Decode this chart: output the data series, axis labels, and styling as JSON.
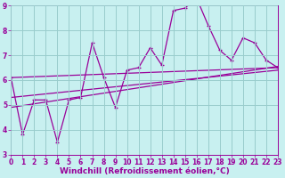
{
  "xlabel": "Windchill (Refroidissement éolien,°C)",
  "background_color": "#c8f0f0",
  "line_color": "#990099",
  "x_data": [
    0,
    1,
    2,
    3,
    4,
    5,
    6,
    7,
    8,
    9,
    10,
    11,
    12,
    13,
    14,
    15,
    16,
    17,
    18,
    19,
    20,
    21,
    22,
    23
  ],
  "series1": [
    6.1,
    3.8,
    5.2,
    5.2,
    3.5,
    5.2,
    5.3,
    7.5,
    6.1,
    4.9,
    6.4,
    6.5,
    7.3,
    6.6,
    8.8,
    8.9,
    9.3,
    8.2,
    7.2,
    6.8,
    7.7,
    7.5,
    6.8,
    6.5
  ],
  "trend1_x": [
    0,
    23
  ],
  "trend1_y": [
    6.1,
    6.5
  ],
  "trend2_x": [
    0,
    23
  ],
  "trend2_y": [
    5.3,
    6.4
  ],
  "trend3_x": [
    0,
    23
  ],
  "trend3_y": [
    4.9,
    6.55
  ],
  "ylim": [
    3,
    9
  ],
  "xlim": [
    0,
    23
  ],
  "grid_color": "#99cccc",
  "yticks": [
    3,
    4,
    5,
    6,
    7,
    8,
    9
  ],
  "xticks": [
    0,
    1,
    2,
    3,
    4,
    5,
    6,
    7,
    8,
    9,
    10,
    11,
    12,
    13,
    14,
    15,
    16,
    17,
    18,
    19,
    20,
    21,
    22,
    23
  ],
  "tick_fontsize": 5.5,
  "xlabel_fontsize": 6.5
}
